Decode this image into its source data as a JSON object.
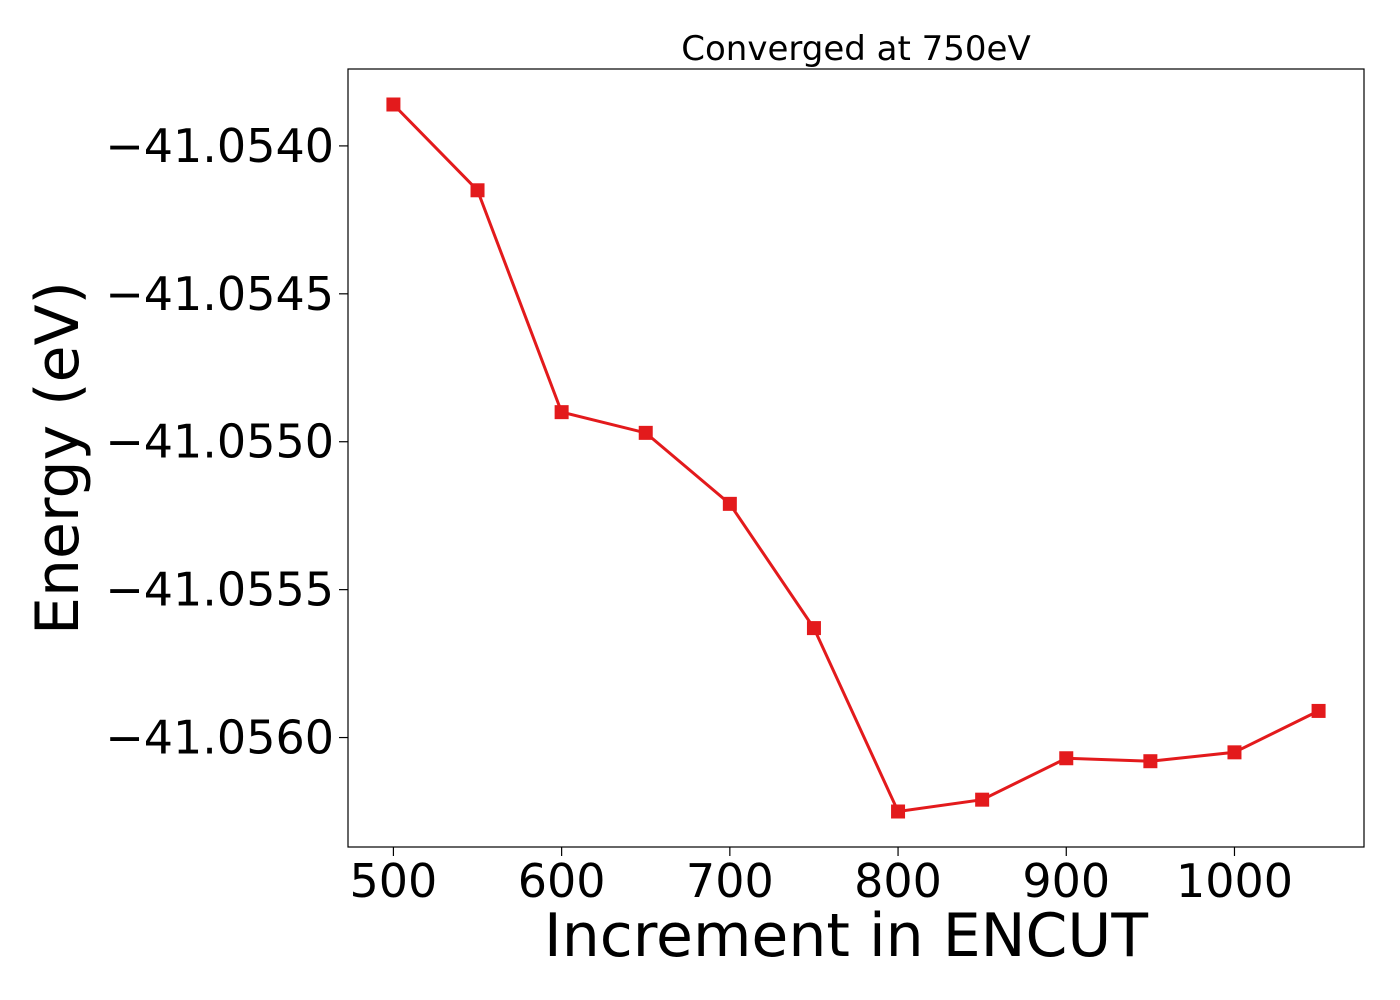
{
  "chart_data": {
    "type": "line",
    "title": "Converged at 750eV",
    "xlabel": "Increment in ENCUT",
    "ylabel": "Energy (eV)",
    "x": [
      500,
      550,
      600,
      650,
      700,
      750,
      800,
      850,
      900,
      950,
      1000,
      1050
    ],
    "series": [
      {
        "values": [
          -41.05386,
          -41.05415,
          -41.0549,
          -41.05497,
          -41.05521,
          -41.05563,
          -41.05625,
          -41.05621,
          -41.05607,
          -41.05608,
          -41.05605,
          -41.05591
        ]
      }
    ],
    "xlim": [
      473,
      1077
    ],
    "ylim": [
      -41.05637,
      -41.05374
    ],
    "xticks": [
      500,
      600,
      700,
      800,
      900,
      1000
    ],
    "xtick_labels": [
      "500",
      "600",
      "700",
      "800",
      "900",
      "1000"
    ],
    "yticks": [
      -41.054,
      -41.0545,
      -41.055,
      -41.0555,
      -41.056
    ],
    "ytick_labels": [
      "−41.0540",
      "−41.0545",
      "−41.0550",
      "−41.0555",
      "−41.0560"
    ],
    "grid": false,
    "line_color": "#e31a1c",
    "marker": "square"
  }
}
